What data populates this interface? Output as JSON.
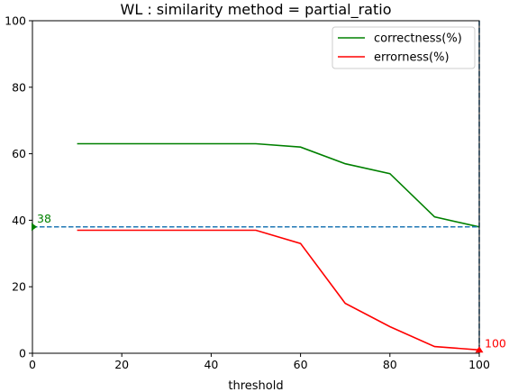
{
  "chart_data": {
    "type": "line",
    "title": "WL : similarity method = partial_ratio",
    "xlabel": "threshold",
    "ylabel": "",
    "xlim": [
      0,
      100
    ],
    "ylim": [
      0,
      100
    ],
    "xticks": [
      0,
      20,
      40,
      60,
      80,
      100
    ],
    "yticks": [
      0,
      20,
      40,
      60,
      80,
      100
    ],
    "grid": false,
    "legend_position": "top-right",
    "x": [
      10,
      20,
      30,
      40,
      50,
      60,
      70,
      80,
      90,
      100
    ],
    "series": [
      {
        "name": "correctness(%)",
        "color": "#008000",
        "values": [
          63,
          63,
          63,
          63,
          63,
          62,
          57,
          54,
          41,
          38
        ]
      },
      {
        "name": "errorness(%)",
        "color": "#ff0000",
        "values": [
          37,
          37,
          37,
          37,
          37,
          33,
          15,
          8,
          2,
          1
        ]
      }
    ],
    "reference_lines": [
      {
        "orientation": "horizontal",
        "value": 38,
        "color": "#1f77b4",
        "style": "dashed"
      },
      {
        "orientation": "vertical",
        "value": 100,
        "color": "#1f77b4",
        "style": "dashed"
      }
    ],
    "annotations": [
      {
        "text": "38",
        "x": 0,
        "y": 38,
        "color": "#008000",
        "marker": "right-triangle"
      },
      {
        "text": "100",
        "x": 100,
        "y": 1,
        "color": "#ff0000",
        "marker": "up-triangle"
      }
    ]
  }
}
